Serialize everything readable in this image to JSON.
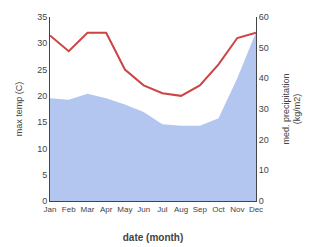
{
  "chart_data": {
    "type": "line",
    "xlabel": "date (month)",
    "ylabel": "max temp (C)",
    "y2label": "med. precipitation\n(kg/m2)",
    "categories": [
      "Jan",
      "Feb",
      "Mar",
      "Apr",
      "May",
      "Jun",
      "Jul",
      "Aug",
      "Sep",
      "Oct",
      "Nov",
      "Dec"
    ],
    "series": [
      {
        "type": "area",
        "axis": "y2",
        "color": "#b3c6f0",
        "values": [
          33.5,
          33.0,
          35.0,
          33.5,
          31.5,
          29.0,
          25.0,
          24.5,
          24.5,
          27.0,
          40.0,
          55.0
        ]
      },
      {
        "type": "line",
        "color": "#cc4444",
        "values": [
          31.5,
          28.5,
          32.0,
          32.0,
          25.0,
          22.0,
          20.5,
          20.0,
          22.0,
          26.0,
          31.0,
          32.0
        ]
      }
    ],
    "ylim": [
      0,
      35
    ],
    "yticks": [
      0,
      5,
      10,
      15,
      20,
      25,
      30,
      35
    ],
    "y2lim": [
      0,
      60
    ],
    "y2ticks": [
      0,
      10,
      20,
      30,
      40,
      50,
      60
    ],
    "grid": false
  }
}
